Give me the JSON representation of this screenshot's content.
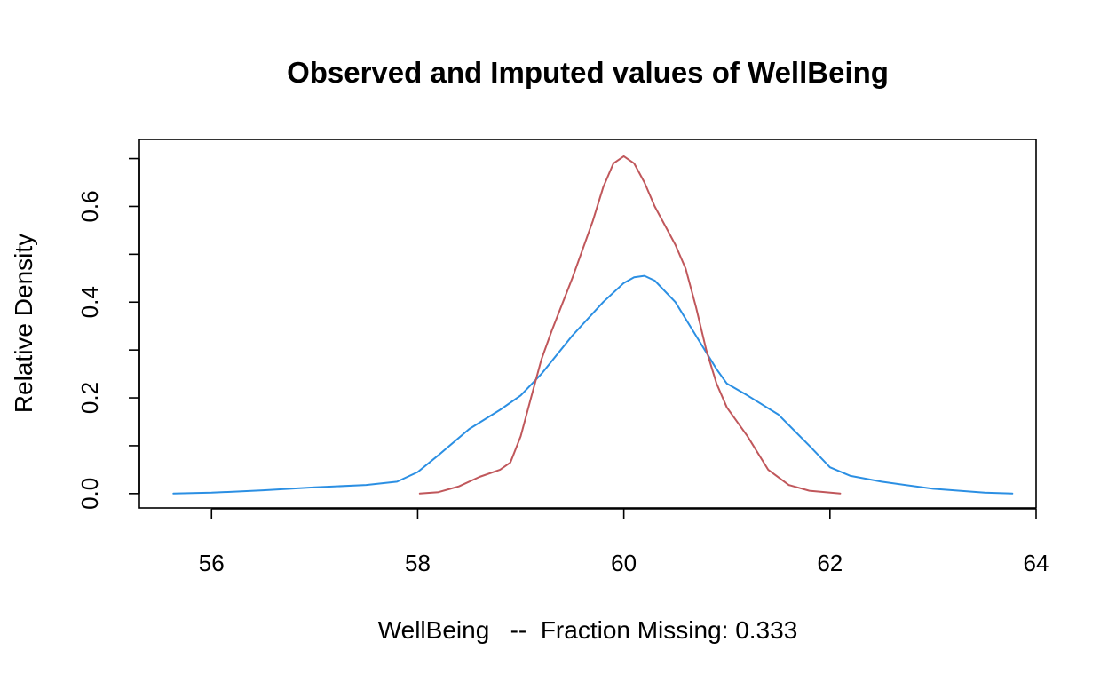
{
  "chart_data": {
    "type": "line",
    "title": "Observed and Imputed values of WellBeing",
    "xlabel": "WellBeing   --  Fraction Missing: 0.333",
    "ylabel": "Relative Density",
    "xlim": [
      55.3,
      64.0
    ],
    "ylim": [
      -0.03,
      0.74
    ],
    "x_ticks": [
      56,
      58,
      60,
      62,
      64
    ],
    "x_tick_labels": [
      "56",
      "58",
      "60",
      "62",
      "64"
    ],
    "y_ticks": [
      0.0,
      0.1,
      0.2,
      0.3,
      0.4,
      0.5,
      0.6,
      0.7
    ],
    "y_tick_labels": [
      "0.0",
      "",
      "0.2",
      "",
      "0.4",
      "",
      "0.6",
      ""
    ],
    "grid": false,
    "legend": "none",
    "series": [
      {
        "color": "#2B8FE3",
        "x": [
          55.63,
          56.0,
          56.5,
          57.0,
          57.5,
          57.8,
          58.0,
          58.2,
          58.5,
          58.8,
          59.0,
          59.2,
          59.5,
          59.8,
          60.0,
          60.1,
          60.2,
          60.3,
          60.5,
          60.7,
          60.9,
          61.0,
          61.2,
          61.5,
          61.8,
          62.0,
          62.2,
          62.5,
          63.0,
          63.5,
          63.77
        ],
        "y": [
          0.0,
          0.002,
          0.007,
          0.013,
          0.018,
          0.025,
          0.045,
          0.08,
          0.135,
          0.175,
          0.205,
          0.25,
          0.33,
          0.4,
          0.44,
          0.452,
          0.455,
          0.445,
          0.4,
          0.33,
          0.26,
          0.23,
          0.205,
          0.165,
          0.1,
          0.055,
          0.037,
          0.025,
          0.01,
          0.002,
          0.0
        ]
      },
      {
        "color": "#C0575B",
        "x": [
          58.02,
          58.2,
          58.4,
          58.6,
          58.8,
          58.9,
          59.0,
          59.1,
          59.2,
          59.3,
          59.5,
          59.7,
          59.8,
          59.9,
          60.0,
          60.1,
          60.2,
          60.3,
          60.5,
          60.6,
          60.7,
          60.8,
          60.9,
          61.0,
          61.2,
          61.4,
          61.6,
          61.8,
          62.1
        ],
        "y": [
          0.0,
          0.003,
          0.015,
          0.035,
          0.05,
          0.065,
          0.12,
          0.2,
          0.28,
          0.34,
          0.45,
          0.57,
          0.64,
          0.69,
          0.705,
          0.69,
          0.65,
          0.6,
          0.52,
          0.47,
          0.39,
          0.3,
          0.23,
          0.18,
          0.12,
          0.05,
          0.018,
          0.006,
          0.0
        ]
      }
    ]
  }
}
